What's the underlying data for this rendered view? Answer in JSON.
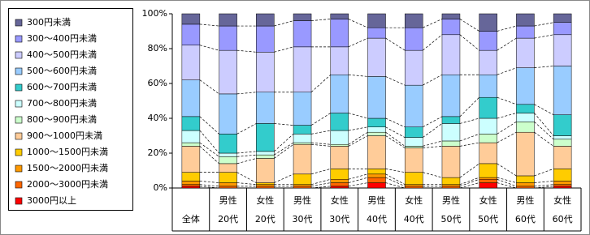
{
  "chart_data": {
    "type": "stacked-bar-100",
    "categories": [
      [
        "全体"
      ],
      [
        "男性",
        "20代"
      ],
      [
        "女性",
        "20代"
      ],
      [
        "男性",
        "30代"
      ],
      [
        "女性",
        "30代"
      ],
      [
        "男性",
        "40代"
      ],
      [
        "女性",
        "40代"
      ],
      [
        "男性",
        "50代"
      ],
      [
        "女性",
        "50代"
      ],
      [
        "男性",
        "60代"
      ],
      [
        "女性",
        "60代"
      ]
    ],
    "series": [
      {
        "name": "300円未満",
        "color": "#666699",
        "values": [
          6,
          7,
          7,
          4,
          3,
          8,
          8,
          3,
          10,
          7,
          5
        ]
      },
      {
        "name": "300～400円未満",
        "color": "#9999ff",
        "values": [
          12,
          14,
          15,
          15,
          16,
          6,
          13,
          9,
          11,
          7,
          7
        ]
      },
      {
        "name": "400～500円未満",
        "color": "#ccccff",
        "values": [
          20,
          25,
          23,
          26,
          16,
          22,
          20,
          23,
          14,
          17,
          18
        ]
      },
      {
        "name": "500～600円未満",
        "color": "#99ccff",
        "values": [
          21,
          23,
          18,
          19,
          22,
          24,
          24,
          24,
          13,
          21,
          28
        ]
      },
      {
        "name": "600～700円未満",
        "color": "#33cccc",
        "values": [
          8,
          11,
          16,
          5,
          10,
          5,
          6,
          4,
          12,
          5,
          12
        ]
      },
      {
        "name": "700～800円未満",
        "color": "#ccffff",
        "values": [
          7,
          2,
          2,
          5,
          8,
          3,
          5,
          10,
          9,
          5,
          2
        ]
      },
      {
        "name": "800～900円未満",
        "color": "#ccffcc",
        "values": [
          2,
          4,
          2,
          1,
          1,
          2,
          1,
          3,
          5,
          6,
          4
        ]
      },
      {
        "name": "900～1000円未満",
        "color": "#ffcc99",
        "values": [
          15,
          5,
          14,
          17,
          13,
          19,
          14,
          18,
          12,
          25,
          13
        ]
      },
      {
        "name": "1000～1500円未満",
        "color": "#ffcc00",
        "values": [
          5,
          6,
          1,
          6,
          6,
          3,
          7,
          4,
          8,
          4,
          7
        ]
      },
      {
        "name": "1500～2000円未満",
        "color": "#ff9900",
        "values": [
          2,
          2,
          1,
          1,
          2,
          2,
          1,
          1,
          1,
          2,
          2
        ]
      },
      {
        "name": "2000～3000円未満",
        "color": "#ff6600",
        "values": [
          1,
          1,
          1,
          1,
          2,
          3,
          1,
          1,
          2,
          1,
          1
        ]
      },
      {
        "name": "3000円以上",
        "color": "#ff0000",
        "values": [
          1,
          0,
          0,
          0,
          1,
          3,
          0,
          0,
          3,
          0,
          1
        ]
      }
    ],
    "ylim": [
      0,
      100
    ],
    "yticks": [
      {
        "value": 0,
        "label": "0%"
      },
      {
        "value": 20,
        "label": "20%"
      },
      {
        "value": 40,
        "label": "40%"
      },
      {
        "value": 60,
        "label": "60%"
      },
      {
        "value": 80,
        "label": "80%"
      },
      {
        "value": 100,
        "label": "100%"
      }
    ],
    "grid": false
  }
}
